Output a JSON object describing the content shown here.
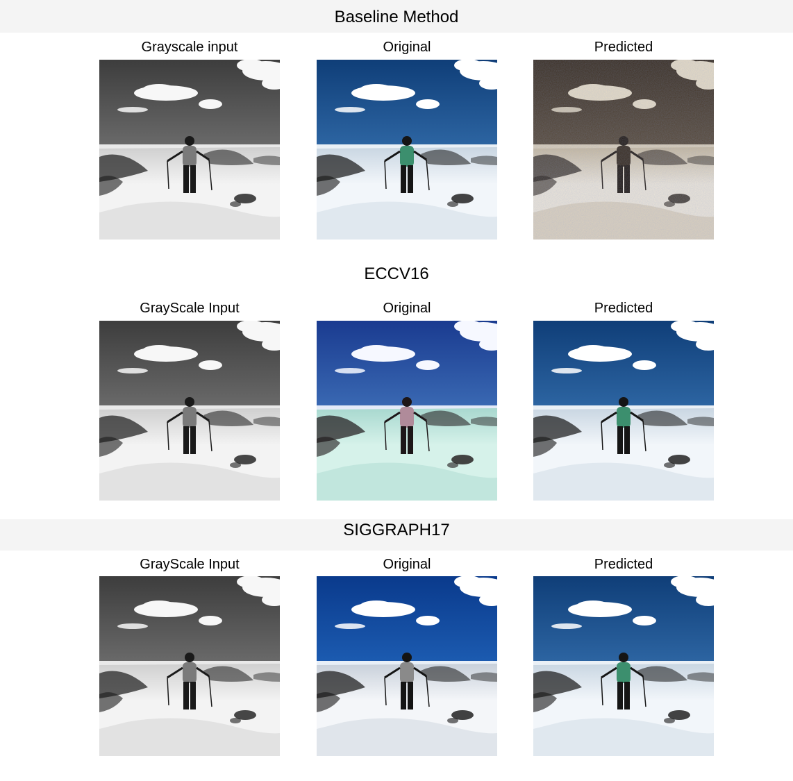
{
  "sections": [
    {
      "title": "Baseline Method",
      "panels": [
        {
          "title": "Grayscale input",
          "style": "gray"
        },
        {
          "title": "Original",
          "style": "color"
        },
        {
          "title": "Predicted",
          "style": "sepia"
        }
      ]
    },
    {
      "title": "ECCV16",
      "panels": [
        {
          "title": "GrayScale Input",
          "style": "gray"
        },
        {
          "title": "Original",
          "style": "cyan"
        },
        {
          "title": "Predicted",
          "style": "color"
        }
      ]
    },
    {
      "title": "SIGGRAPH17",
      "panels": [
        {
          "title": "GrayScale Input",
          "style": "gray"
        },
        {
          "title": "Original",
          "style": "deepblue"
        },
        {
          "title": "Predicted",
          "style": "color"
        }
      ]
    }
  ],
  "palettes": {
    "gray": {
      "sky_top": "#3d3d3d",
      "sky_bottom": "#9a9a9a",
      "ground": "#f3f3f3",
      "shade": "#cfcfcf",
      "cloud": "#f7f7f7",
      "figure": "#1a1a1a",
      "shirt": "#7a7a7a"
    },
    "color": {
      "sky_top": "#0f3e78",
      "sky_bottom": "#4d8fd0",
      "ground": "#f2f6fa",
      "shade": "#c9d6e2",
      "cloud": "#ffffff",
      "figure": "#151515",
      "shirt": "#3c8f6e"
    },
    "sepia": {
      "sky_top": "#3a2c1e",
      "sky_bottom": "#7c6a55",
      "ground": "#efe6d8",
      "shade": "#c9b99e",
      "cloud": "#e9dcc4",
      "figure": "#241a12",
      "shirt": "#3a2c1e"
    },
    "cyan": {
      "sky_top": "#1a3b90",
      "sky_bottom": "#5c9ad8",
      "ground": "#d6f2ea",
      "shade": "#a8d8cf",
      "cloud": "#f6f8ff",
      "figure": "#1d1618",
      "shirt": "#b08b9a"
    },
    "deepblue": {
      "sky_top": "#0a3a8c",
      "sky_bottom": "#2f7fd8",
      "ground": "#f4f6f9",
      "shade": "#c8d0da",
      "cloud": "#ffffff",
      "figure": "#141414",
      "shirt": "#8a8a8a"
    }
  }
}
